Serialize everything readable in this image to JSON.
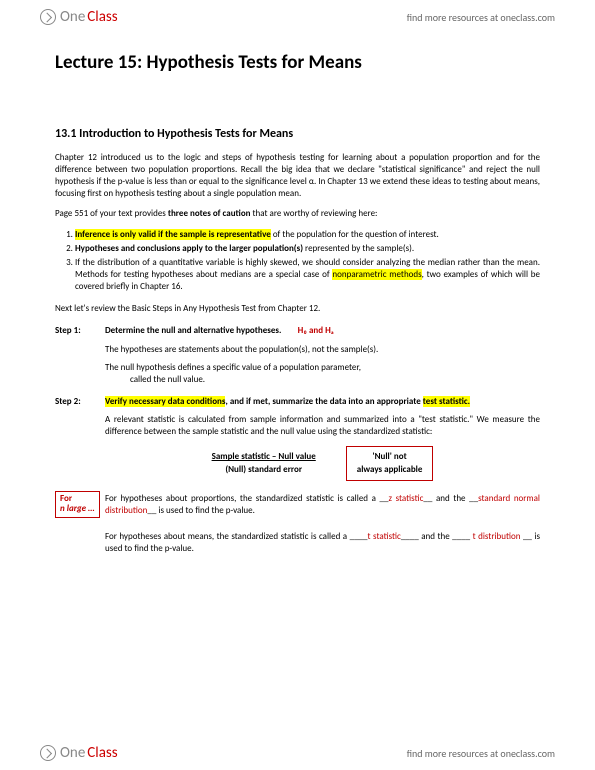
{
  "brand": {
    "one": "One",
    "class": "Class",
    "tagline": "find more resources at oneclass.com"
  },
  "title": "Lecture 15: Hypothesis Tests for Means",
  "section": "13.1 Introduction to Hypothesis Tests for Means",
  "intro1": "Chapter 12 introduced us to the logic and steps of hypothesis testing for learning about a population proportion and for the difference between two population proportions. Recall the big idea that we declare \"statistical significance\" and reject the null hypothesis if the p-value is less than or equal to the significance level α.  In Chapter 13 we extend these ideas to testing about means, focusing first on hypothesis testing about a single population mean.",
  "intro2_a": "Page 551  of your text provides ",
  "intro2_b": "three notes of caution",
  "intro2_c": " that are worthy of reviewing here:",
  "notes": {
    "n1_a": "Inference is only valid if the sample is representative",
    "n1_b": " of the population for the question of interest.",
    "n2_a": "Hypotheses and conclusions apply to the larger population(s) ",
    "n2_b": "represented by the sample(s).",
    "n3_a": "If the distribution of a quantitative variable is highly skewed, we should consider analyzing the median rather than the mean. Methods for testing hypotheses about medians are a special case of ",
    "n3_b": "nonparametric methods",
    "n3_c": ", two examples of which will be covered briefly in Chapter 16."
  },
  "review": "Next let's review the Basic Steps in Any Hypothesis Test from Chapter 12.",
  "step1": {
    "label": "Step 1:",
    "title": "Determine the null and alternative hypotheses.",
    "hyp": "H₀ and Hₐ",
    "l1": "The hypotheses are statements about the population(s), not the sample(s).",
    "l2": "The null hypothesis defines a specific value of a population parameter,",
    "l3": "called the null value."
  },
  "step2": {
    "label": "Step 2:",
    "title_a": "Verify necessary data conditions",
    "title_b": ", and if met, summarize the data into an appropriate ",
    "title_c": "test statistic.",
    "sub": "A relevant statistic is calculated from sample information and summarized into a \"test statistic.\"  We measure the difference between the sample statistic and the null value using the standardized statistic:",
    "formula_top": "Sample statistic – Null value",
    "formula_bot": "(Null) standard error",
    "callout1": "'Null' not",
    "callout1b": "always applicable",
    "box_left1": "For",
    "box_left2": "n large …",
    "prop_a": "For hypotheses about proportions, the standardized statistic is called a __",
    "prop_b": "z statistic",
    "prop_c": "__ and the __",
    "prop_d": "standard normal distribution",
    "prop_e": "__ is used to find the p-value.",
    "mean_a": "For hypotheses about means, the standardized statistic is called a ____",
    "mean_b": "t statistic",
    "mean_c": "____ and the ____ ",
    "mean_d": "t distribution",
    "mean_e": " __ is used to find the p-value."
  }
}
